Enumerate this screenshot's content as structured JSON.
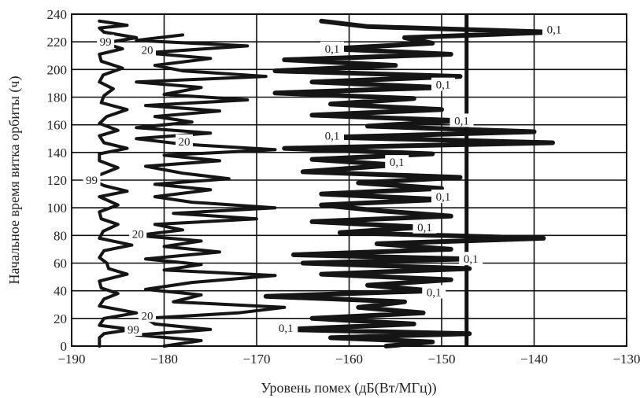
{
  "chart_data": {
    "type": "line",
    "xlabel": "Уровень помех (дБ(Вт/МГц))",
    "ylabel": "Начальное время витка орбиты (ч)",
    "xlim": [
      -190,
      -130
    ],
    "ylim": [
      0,
      240
    ],
    "x_ticks": [
      -190,
      -180,
      -170,
      -160,
      -150,
      -140,
      -130
    ],
    "y_ticks": [
      0,
      20,
      40,
      60,
      80,
      100,
      120,
      140,
      160,
      180,
      200,
      220,
      240
    ],
    "x_tick_labels": [
      "−190",
      "−180",
      "−170",
      "−160",
      "−150",
      "−140",
      "−130"
    ],
    "y_tick_labels": [
      "0",
      "20",
      "40",
      "60",
      "80",
      "100",
      "120",
      "140",
      "160",
      "180",
      "200",
      "220",
      "240"
    ],
    "grid": true,
    "threshold_x": -147.3,
    "series": [
      {
        "label_text": "99",
        "points": [
          [
            -187,
            0
          ],
          [
            -187,
            6
          ],
          [
            -186.5,
            9
          ],
          [
            -183.5,
            12
          ],
          [
            -187,
            15
          ],
          [
            -186.5,
            20
          ],
          [
            -183,
            24
          ],
          [
            -187,
            29
          ],
          [
            -186.5,
            34
          ],
          [
            -185,
            38
          ],
          [
            -186.8,
            42
          ],
          [
            -187,
            47
          ],
          [
            -184,
            52
          ],
          [
            -186,
            56
          ],
          [
            -186.2,
            60
          ],
          [
            -187,
            64
          ],
          [
            -186.5,
            69
          ],
          [
            -183.5,
            73
          ],
          [
            -187,
            78
          ],
          [
            -186.6,
            83
          ],
          [
            -185,
            88
          ],
          [
            -186.8,
            92
          ],
          [
            -187,
            97
          ],
          [
            -185,
            102
          ],
          [
            -187,
            108
          ],
          [
            -184,
            112
          ],
          [
            -186.5,
            116
          ],
          [
            -188,
            121
          ],
          [
            -186.5,
            125
          ],
          [
            -185,
            129
          ],
          [
            -187,
            134
          ],
          [
            -187,
            139
          ],
          [
            -184,
            143
          ],
          [
            -186.5,
            147
          ],
          [
            -187,
            152
          ],
          [
            -185,
            156
          ],
          [
            -187,
            161
          ],
          [
            -186.2,
            166
          ],
          [
            -184,
            171
          ],
          [
            -186.8,
            176
          ],
          [
            -186.5,
            181
          ],
          [
            -185.5,
            186
          ],
          [
            -187,
            191
          ],
          [
            -186.6,
            196
          ],
          [
            -184.5,
            201
          ],
          [
            -186.8,
            206
          ],
          [
            -187,
            211
          ],
          [
            -184.5,
            215
          ],
          [
            -186.5,
            219
          ],
          [
            -183,
            223
          ],
          [
            -186.5,
            227
          ],
          [
            -187,
            230
          ],
          [
            -184,
            232
          ],
          [
            -187,
            235
          ]
        ]
      },
      {
        "label_text": "20",
        "points": [
          [
            -180,
            0
          ],
          [
            -176,
            4
          ],
          [
            -183,
            8
          ],
          [
            -175,
            12
          ],
          [
            -181,
            16
          ],
          [
            -182,
            20
          ],
          [
            -172,
            24
          ],
          [
            -167,
            28
          ],
          [
            -179,
            32
          ],
          [
            -176,
            37
          ],
          [
            -182,
            41
          ],
          [
            -177,
            46
          ],
          [
            -168,
            51
          ],
          [
            -180,
            55
          ],
          [
            -176,
            59
          ],
          [
            -182,
            63
          ],
          [
            -174,
            68
          ],
          [
            -180,
            72
          ],
          [
            -176,
            76
          ],
          [
            -183,
            80
          ],
          [
            -178,
            84
          ],
          [
            -181,
            88
          ],
          [
            -170,
            92
          ],
          [
            -179,
            96
          ],
          [
            -168,
            100
          ],
          [
            -177,
            104
          ],
          [
            -181,
            108
          ],
          [
            -175,
            113
          ],
          [
            -181,
            117
          ],
          [
            -173,
            121
          ],
          [
            -178,
            125
          ],
          [
            -182,
            130
          ],
          [
            -174,
            134
          ],
          [
            -180,
            138
          ],
          [
            -168,
            142
          ],
          [
            -178,
            146
          ],
          [
            -183,
            150
          ],
          [
            -175,
            154
          ],
          [
            -183,
            158
          ],
          [
            -177,
            162
          ],
          [
            -181,
            166
          ],
          [
            -174,
            170
          ],
          [
            -182,
            174
          ],
          [
            -171,
            178
          ],
          [
            -180,
            182
          ],
          [
            -176,
            187
          ],
          [
            -183,
            191
          ],
          [
            -169,
            195
          ],
          [
            -178,
            199
          ],
          [
            -181,
            203
          ],
          [
            -175,
            208
          ],
          [
            -182,
            212
          ],
          [
            -171,
            217
          ],
          [
            -183,
            221
          ],
          [
            -178,
            225
          ]
        ]
      },
      {
        "label_text": "0,1",
        "points": [
          [
            -156,
            0
          ],
          [
            -151,
            3
          ],
          [
            -162,
            6
          ],
          [
            -147,
            9
          ],
          [
            -167,
            12
          ],
          [
            -153,
            16
          ],
          [
            -164,
            20
          ],
          [
            -152,
            24
          ],
          [
            -159,
            28
          ],
          [
            -154,
            32
          ],
          [
            -169,
            36
          ],
          [
            -151,
            40
          ],
          [
            -158,
            44
          ],
          [
            -149,
            48
          ],
          [
            -163,
            52
          ],
          [
            -147,
            56
          ],
          [
            -165,
            60
          ],
          [
            -147,
            63
          ],
          [
            -166,
            66
          ],
          [
            -149,
            70
          ],
          [
            -157,
            74
          ],
          [
            -139,
            78
          ],
          [
            -161,
            82
          ],
          [
            -152,
            86
          ],
          [
            -164,
            90
          ],
          [
            -149,
            94
          ],
          [
            -157,
            98
          ],
          [
            -163,
            102
          ],
          [
            -150,
            106
          ],
          [
            -163,
            110
          ],
          [
            -150,
            114
          ],
          [
            -159,
            118
          ],
          [
            -148,
            122
          ],
          [
            -165,
            126
          ],
          [
            -155,
            131
          ],
          [
            -164,
            135
          ],
          [
            -151,
            139
          ],
          [
            -167,
            143
          ],
          [
            -138,
            147
          ],
          [
            -162,
            151
          ],
          [
            -140,
            155
          ],
          [
            -158,
            159
          ],
          [
            -148,
            163
          ],
          [
            -164,
            167
          ],
          [
            -150,
            171
          ],
          [
            -162,
            175
          ],
          [
            -153,
            179
          ],
          [
            -168,
            183
          ],
          [
            -150,
            187
          ],
          [
            -164,
            191
          ],
          [
            -148,
            195
          ],
          [
            -168,
            199
          ],
          [
            -155,
            203
          ],
          [
            -167,
            207
          ],
          [
            -149,
            211
          ],
          [
            -162,
            215
          ],
          [
            -151,
            219
          ],
          [
            -154,
            223
          ],
          [
            -138,
            227
          ],
          [
            -158,
            231
          ],
          [
            -163,
            235
          ]
        ]
      }
    ]
  }
}
